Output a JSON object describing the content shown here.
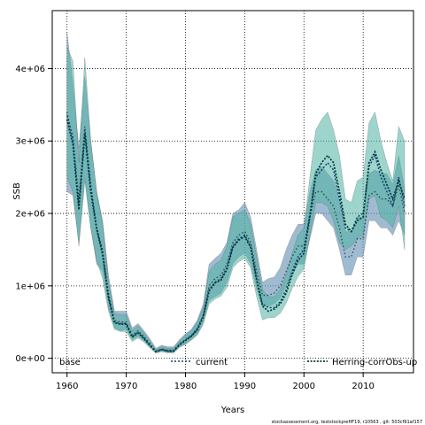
{
  "chart_data": {
    "type": "line",
    "title": "",
    "xlabel": "Years",
    "ylabel": "SSB",
    "xlim": [
      1957.5,
      2018.5
    ],
    "ylim": [
      -200000,
      4800000
    ],
    "x_ticks": [
      1960,
      1970,
      1980,
      1990,
      2000,
      2010
    ],
    "y_ticks": [
      0,
      1000000,
      2000000,
      3000000,
      4000000
    ],
    "y_tick_labels": [
      "0e+00",
      "1e+06",
      "2e+06",
      "3e+06",
      "4e+06"
    ],
    "grid": "dotted",
    "legend_position": "bottom",
    "x": [
      1960,
      1961,
      1962,
      1963,
      1964,
      1965,
      1966,
      1967,
      1968,
      1969,
      1970,
      1971,
      1972,
      1973,
      1974,
      1975,
      1976,
      1977,
      1978,
      1979,
      1980,
      1981,
      1982,
      1983,
      1984,
      1985,
      1986,
      1987,
      1988,
      1989,
      1990,
      1991,
      1992,
      1993,
      1994,
      1995,
      1996,
      1997,
      1998,
      1999,
      2000,
      2001,
      2002,
      2003,
      2004,
      2005,
      2006,
      2007,
      2008,
      2009,
      2010,
      2011,
      2012,
      2013,
      2014,
      2015,
      2016,
      2017
    ],
    "series": [
      {
        "name": "base",
        "color": "#4a7fa8",
        "values": [
          3400000,
          3000000,
          2200000,
          3200000,
          2400000,
          1800000,
          1500000,
          900000,
          520000,
          500000,
          500000,
          320000,
          380000,
          300000,
          200000,
          100000,
          130000,
          110000,
          110000,
          200000,
          260000,
          320000,
          420000,
          600000,
          1000000,
          1100000,
          1150000,
          1300000,
          1600000,
          1700000,
          1750000,
          1600000,
          1200000,
          870000,
          870000,
          900000,
          1000000,
          1200000,
          1400000,
          1550000,
          1550000,
          1950000,
          2300000,
          2300000,
          2200000,
          2100000,
          1800000,
          1400000,
          1400000,
          1650000,
          1650000,
          2250000,
          2300000,
          2200000,
          2200000,
          2100000,
          2400000,
          2000000
        ],
        "lower": [
          2300000,
          2250000,
          1600000,
          2500000,
          1800000,
          1300000,
          1200000,
          700000,
          420000,
          380000,
          400000,
          260000,
          300000,
          240000,
          160000,
          80000,
          100000,
          80000,
          80000,
          160000,
          200000,
          260000,
          330000,
          500000,
          800000,
          850000,
          900000,
          1050000,
          1300000,
          1400000,
          1450000,
          1300000,
          950000,
          720000,
          720000,
          750000,
          830000,
          1000000,
          1150000,
          1300000,
          1300000,
          1650000,
          2000000,
          2000000,
          1900000,
          1800000,
          1500000,
          1150000,
          1150000,
          1400000,
          1400000,
          1900000,
          1900000,
          1800000,
          1800000,
          1700000,
          1900000,
          1700000
        ],
        "upper": [
          4500000,
          3800000,
          2900000,
          3900000,
          3000000,
          2300000,
          1900000,
          1150000,
          650000,
          650000,
          650000,
          420000,
          480000,
          380000,
          270000,
          140000,
          180000,
          160000,
          160000,
          260000,
          340000,
          400000,
          530000,
          750000,
          1300000,
          1380000,
          1450000,
          1600000,
          2000000,
          2050000,
          2150000,
          1950000,
          1500000,
          1050000,
          1100000,
          1120000,
          1250000,
          1500000,
          1700000,
          1850000,
          1850000,
          2300000,
          2600000,
          2650000,
          2550000,
          2450000,
          2200000,
          1750000,
          1750000,
          1950000,
          1950000,
          2550000,
          2600000,
          2550000,
          2550000,
          2400000,
          2800000,
          2350000
        ]
      },
      {
        "name": "current",
        "color": "#2a8c8c",
        "values": [
          3350000,
          3050000,
          2100000,
          3150000,
          2350000,
          1800000,
          1450000,
          850000,
          500000,
          480000,
          480000,
          300000,
          360000,
          280000,
          180000,
          90000,
          120000,
          100000,
          100000,
          190000,
          250000,
          310000,
          400000,
          580000,
          950000,
          1050000,
          1100000,
          1250000,
          1550000,
          1650000,
          1700000,
          1550000,
          1100000,
          750000,
          700000,
          700000,
          780000,
          950000,
          1200000,
          1400000,
          1500000,
          2000000,
          2500000,
          2600000,
          2700000,
          2600000,
          2200000,
          1800000,
          1750000,
          1950000,
          2000000,
          2650000,
          2800000,
          2500000,
          2300000,
          2100000,
          2500000,
          2100000
        ],
        "lower": [
          2500000,
          2300000,
          1550000,
          2450000,
          1800000,
          1350000,
          1100000,
          650000,
          400000,
          370000,
          370000,
          230000,
          280000,
          220000,
          140000,
          70000,
          90000,
          75000,
          75000,
          150000,
          190000,
          250000,
          320000,
          470000,
          750000,
          820000,
          860000,
          980000,
          1250000,
          1330000,
          1380000,
          1250000,
          850000,
          530000,
          560000,
          560000,
          620000,
          760000,
          960000,
          1130000,
          1230000,
          1700000,
          2150000,
          2150000,
          2100000,
          1900000,
          1600000,
          1500000,
          1550000,
          1650000,
          1700000,
          2200000,
          2250000,
          1950000,
          1900000,
          1800000,
          2100000,
          1500000
        ],
        "upper": [
          4300000,
          4100000,
          2700000,
          4150000,
          3000000,
          2300000,
          1850000,
          1050000,
          620000,
          600000,
          600000,
          380000,
          450000,
          350000,
          230000,
          120000,
          160000,
          140000,
          140000,
          240000,
          320000,
          380000,
          500000,
          700000,
          1200000,
          1300000,
          1350000,
          1550000,
          1950000,
          2000000,
          2050000,
          1850000,
          1400000,
          950000,
          850000,
          850000,
          950000,
          1150000,
          1450000,
          1700000,
          1800000,
          2500000,
          3150000,
          3300000,
          3400000,
          3150000,
          2800000,
          2200000,
          2150000,
          2450000,
          2500000,
          3250000,
          3400000,
          3000000,
          2700000,
          2450000,
          3200000,
          3000000
        ]
      },
      {
        "name": "Herring-corrObs-up",
        "color": "#20a890",
        "values": [
          3300000,
          2950000,
          2050000,
          3100000,
          2300000,
          1780000,
          1430000,
          830000,
          490000,
          470000,
          470000,
          290000,
          350000,
          270000,
          175000,
          90000,
          120000,
          100000,
          100000,
          185000,
          245000,
          305000,
          390000,
          570000,
          930000,
          1040000,
          1080000,
          1230000,
          1530000,
          1630000,
          1680000,
          1530000,
          1080000,
          720000,
          650000,
          680000,
          750000,
          900000,
          1150000,
          1350000,
          1450000,
          1950000,
          2550000,
          2700000,
          2800000,
          2700000,
          2300000,
          1850000,
          1750000,
          1900000,
          1950000,
          2700000,
          2850000,
          2600000,
          2400000,
          2200000,
          2450000,
          2200000
        ]
      }
    ],
    "footer": "stockassessment.org, teststockpreHF19, r10563 , git: 503cf91af157"
  }
}
